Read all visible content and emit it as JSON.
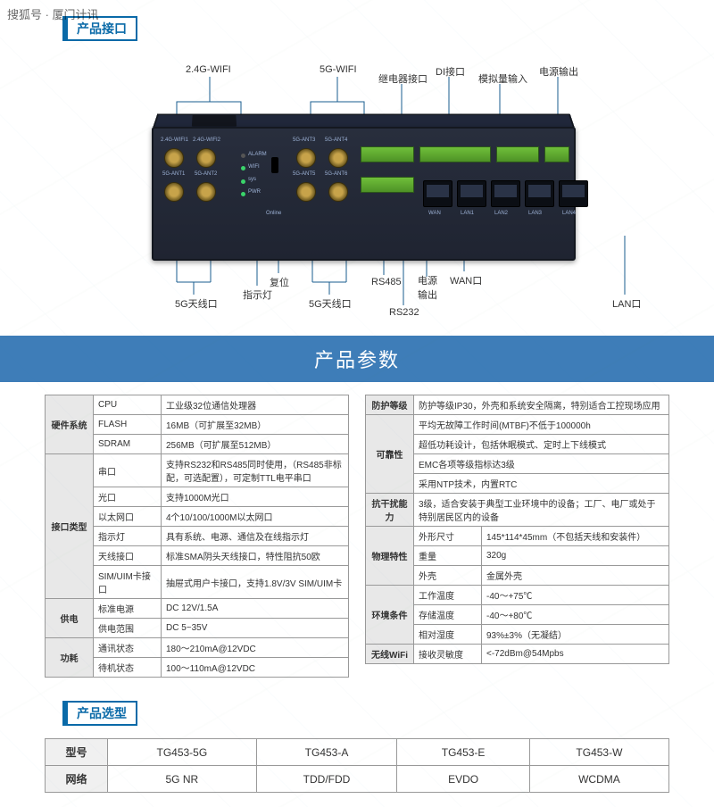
{
  "watermark": "搜狐号 · 厦门计讯",
  "sections": {
    "interface_title": "产品接口",
    "params_title": "产品参数",
    "model_title": "产品选型"
  },
  "callouts": {
    "top": {
      "wifi24": "2.4G-WIFI",
      "wifi5": "5G-WIFI",
      "relay": "继电器接口",
      "di": "DI接口",
      "analog": "模拟量输入",
      "power_out": "电源输出"
    },
    "bottom": {
      "ant5g": "5G天线口",
      "indicator": "指示灯",
      "reset": "复位",
      "ant5g2": "5G天线口",
      "rs485": "RS485",
      "rs232": "RS232",
      "power": "电源\n输出",
      "wan": "WAN口",
      "lan": "LAN口"
    },
    "left": {
      "sim": "SIM/UIM卡接口"
    }
  },
  "device_front_labels": {
    "row1": [
      "2.4G-WIFI1",
      "2.4G-WIFI2"
    ],
    "row2": [
      "5G-ANT1",
      "5G-ANT2"
    ],
    "row3": [
      "5G-ANT3",
      "5G-ANT4"
    ],
    "row4": [
      "5G-ANT5",
      "5G-ANT6"
    ],
    "leds": [
      "ALARM",
      "WIFI",
      "sys",
      "PWR"
    ],
    "online": "Online",
    "ports": [
      "WAN",
      "LAN1",
      "LAN2",
      "LAN3",
      "LAN4"
    ]
  },
  "specs_left": [
    {
      "cat": "硬件系统",
      "rows": [
        [
          "CPU",
          "工业级32位通信处理器"
        ],
        [
          "FLASH",
          "16MB（可扩展至32MB）"
        ],
        [
          "SDRAM",
          "256MB（可扩展至512MB）"
        ]
      ]
    },
    {
      "cat": "接口类型",
      "rows": [
        [
          "串口",
          "支持RS232和RS485同时使用，（RS485非标配，可选配置），可定制TTL电平串口"
        ],
        [
          "光口",
          "支持1000M光口"
        ],
        [
          "以太网口",
          "4个10/100/1000M以太网口"
        ],
        [
          "指示灯",
          "具有系统、电源、通信及在线指示灯"
        ],
        [
          "天线接口",
          "标准SMA阴头天线接口，特性阻抗50欧"
        ],
        [
          "SIM/UIM卡接口",
          "抽屉式用户卡接口，支持1.8V/3V SIM/UIM卡"
        ]
      ]
    },
    {
      "cat": "供电",
      "rows": [
        [
          "标准电源",
          "DC 12V/1.5A"
        ],
        [
          "供电范围",
          "DC 5~35V"
        ]
      ]
    },
    {
      "cat": "功耗",
      "rows": [
        [
          "通讯状态",
          "180～210mA@12VDC"
        ],
        [
          "待机状态",
          "100～110mA@12VDC"
        ]
      ]
    }
  ],
  "specs_right": [
    {
      "cat": "防护等级",
      "rows": [
        [
          "",
          "防护等级IP30，外壳和系统安全隔离，特别适合工控现场应用"
        ]
      ]
    },
    {
      "cat": "可靠性",
      "rows": [
        [
          "",
          "平均无故障工作时间(MTBF)不低于100000h"
        ],
        [
          "",
          "超低功耗设计，包括休眠模式、定时上下线模式"
        ],
        [
          "",
          "EMC各项等级指标达3级"
        ],
        [
          "",
          "采用NTP技术，内置RTC"
        ]
      ]
    },
    {
      "cat": "抗干扰能力",
      "rows": [
        [
          "",
          "3级，适合安装于典型工业环境中的设备；工厂、电厂或处于特别居民区内的设备"
        ]
      ]
    },
    {
      "cat": "物理特性",
      "rows": [
        [
          "外形尺寸",
          "145*114*45mm（不包括天线和安装件）"
        ],
        [
          "重量",
          "320g"
        ],
        [
          "外壳",
          "金属外壳"
        ]
      ]
    },
    {
      "cat": "环境条件",
      "rows": [
        [
          "工作温度",
          "-40～+75℃"
        ],
        [
          "存储温度",
          "-40～+80℃"
        ],
        [
          "相对湿度",
          "93%±3%（无凝结）"
        ]
      ]
    },
    {
      "cat": "无线WiFi",
      "rows": [
        [
          "接收灵敏度",
          "<-72dBm@54Mpbs"
        ]
      ]
    }
  ],
  "models": {
    "header": [
      "型号",
      "TG453-5G",
      "TG453-A",
      "TG453-E",
      "TG453-W"
    ],
    "network": [
      "网络",
      "5G NR",
      "TDD/FDD",
      "EVDO",
      "WCDMA"
    ]
  },
  "colors": {
    "brand": "#0a6aa8",
    "band": "#3e7db8",
    "line": "#1a5d8f",
    "device_dark": "#1f2431"
  }
}
